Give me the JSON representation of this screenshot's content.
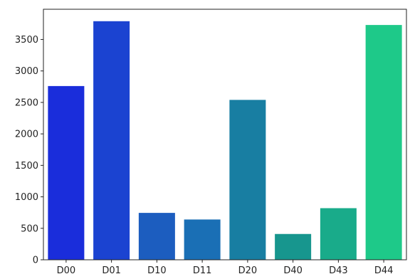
{
  "chart_data": {
    "type": "bar",
    "title": "",
    "xlabel": "",
    "ylabel": "",
    "categories": [
      "D00",
      "D01",
      "D10",
      "D11",
      "D20",
      "D40",
      "D43",
      "D44"
    ],
    "values": [
      2760,
      3790,
      745,
      640,
      2540,
      410,
      820,
      3730
    ],
    "colors": [
      "#1a2ddb",
      "#1b43d1",
      "#1c5dbf",
      "#1a6fb5",
      "#187ea2",
      "#17968e",
      "#19ab8a",
      "#1ec989"
    ],
    "ylim": [
      0,
      3980
    ],
    "yticks": [
      0,
      500,
      1000,
      1500,
      2000,
      2500,
      3000,
      3500
    ],
    "grid": false,
    "legend": "none"
  }
}
